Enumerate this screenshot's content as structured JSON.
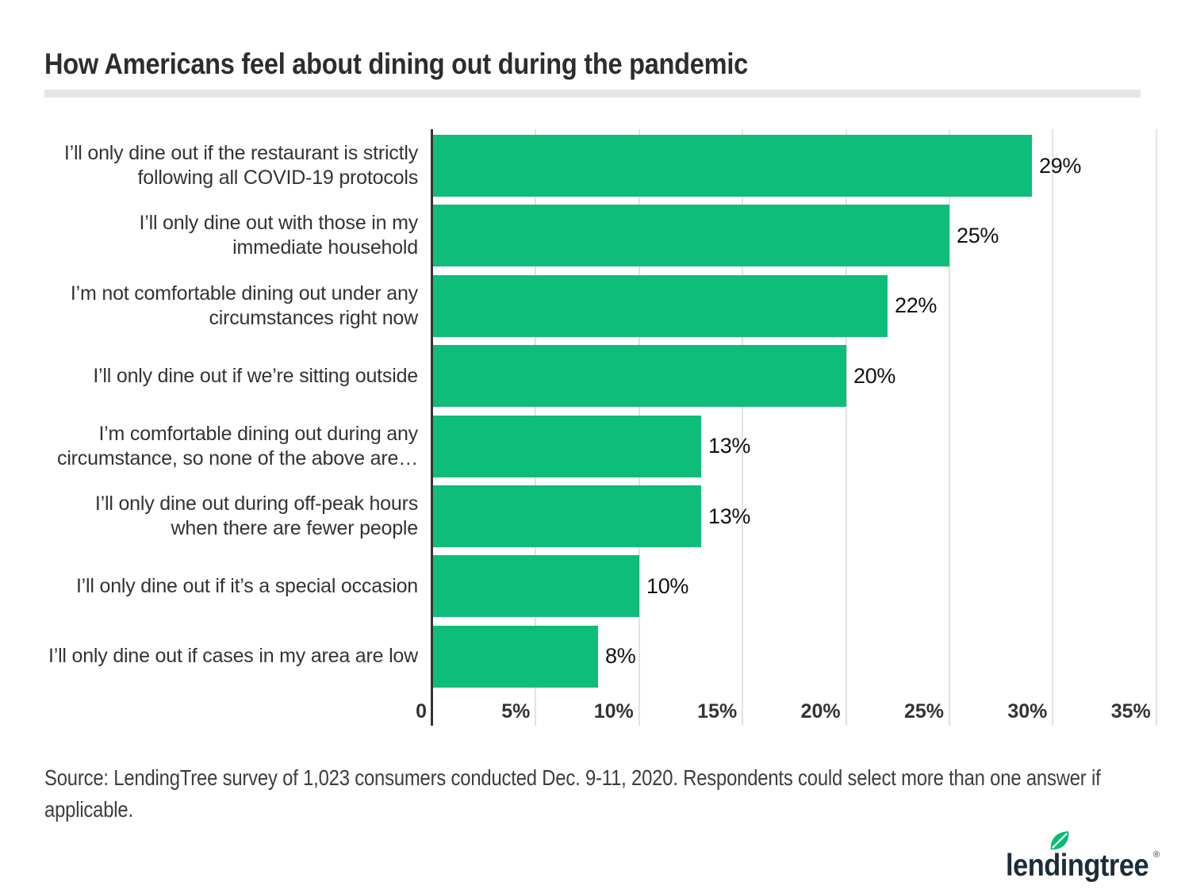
{
  "title": "How Americans feel about dining out during the pandemic",
  "source": {
    "line1": "Source: LendingTree survey of 1,023 consumers conducted Dec. 9-11, 2020. Respondents could select more than one answer if",
    "line2": "applicable."
  },
  "logo": {
    "text": "lendingtree",
    "registered": "®",
    "text_color": "#1d2b39",
    "leaf_color": "#00bf6f"
  },
  "colors": {
    "bar": "#0ebd79",
    "axis": "#333333",
    "gridline": "#e2e2e2",
    "divider": "#e6e6e6",
    "title_text": "#2d2d2d",
    "label_text": "#333333",
    "value_text": "#111111"
  },
  "chart_data": {
    "type": "bar",
    "orientation": "horizontal",
    "title": "How Americans feel about dining out during the pandemic",
    "categories": [
      [
        "I’ll only dine out if the restaurant is strictly",
        "following all COVID-19 protocols"
      ],
      [
        "I’ll only dine out with those in my",
        "immediate household"
      ],
      [
        "I’m not comfortable dining out under any",
        "circumstances right now"
      ],
      [
        "I’ll only dine out if we’re sitting outside"
      ],
      [
        "I’m comfortable dining out during any",
        "circumstance, so none of the above are…"
      ],
      [
        "I’ll only dine out during off-peak hours",
        "when there are fewer people"
      ],
      [
        "I’ll only dine out if it’s a special occasion"
      ],
      [
        "I’ll only dine out if cases in my area are low"
      ]
    ],
    "values": [
      29,
      25,
      22,
      20,
      13,
      13,
      10,
      8
    ],
    "value_labels": [
      "29%",
      "25%",
      "22%",
      "20%",
      "13%",
      "13%",
      "10%",
      "8%"
    ],
    "x_ticks": [
      "0",
      "5%",
      "10%",
      "15%",
      "20%",
      "25%",
      "30%",
      "35%"
    ],
    "x_tick_values": [
      0,
      5,
      10,
      15,
      20,
      25,
      30,
      35
    ],
    "xlim": [
      0,
      35
    ],
    "grid": true,
    "legend": false
  }
}
